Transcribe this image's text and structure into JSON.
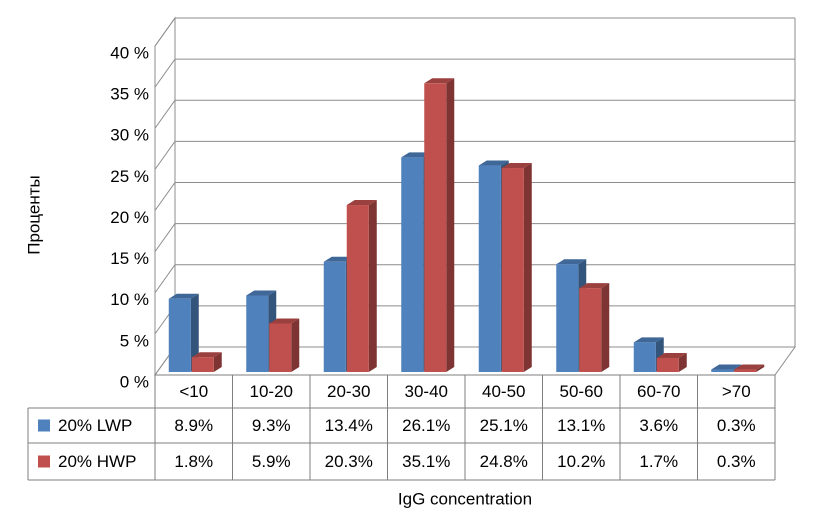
{
  "chart_data": {
    "type": "bar",
    "x_label": "IgG concentration",
    "y_label": "Проценты",
    "categories": [
      "<10",
      "10-20",
      "20-30",
      "30-40",
      "40-50",
      "50-60",
      "60-70",
      ">70"
    ],
    "series": [
      {
        "name": "20% LWP",
        "color": "#4f81bd",
        "values": [
          8.9,
          9.3,
          13.4,
          26.1,
          25.1,
          13.1,
          3.6,
          0.3
        ],
        "value_labels": [
          "8.9%",
          "9.3%",
          "13.4%",
          "26.1%",
          "25.1%",
          "13.1%",
          "3.6%",
          "0.3%"
        ]
      },
      {
        "name": "20% HWP",
        "color": "#c0504d",
        "values": [
          1.8,
          5.9,
          20.3,
          35.1,
          24.8,
          10.2,
          1.7,
          0.3
        ],
        "value_labels": [
          "1.8%",
          "5.9%",
          "20.3%",
          "35.1%",
          "24.8%",
          "10.2%",
          "1.7%",
          "0.3%"
        ]
      }
    ],
    "ylim": [
      0,
      40
    ],
    "yticks": [
      {
        "value": 0,
        "label": "0 %"
      },
      {
        "value": 5,
        "label": "5 %"
      },
      {
        "value": 10,
        "label": "10 %"
      },
      {
        "value": 15,
        "label": "15 %"
      },
      {
        "value": 20,
        "label": "20 %"
      },
      {
        "value": 25,
        "label": "25 %"
      },
      {
        "value": 30,
        "label": "30 %"
      },
      {
        "value": 35,
        "label": "35 %"
      },
      {
        "value": 40,
        "label": "40 %"
      }
    ],
    "grid": true
  }
}
